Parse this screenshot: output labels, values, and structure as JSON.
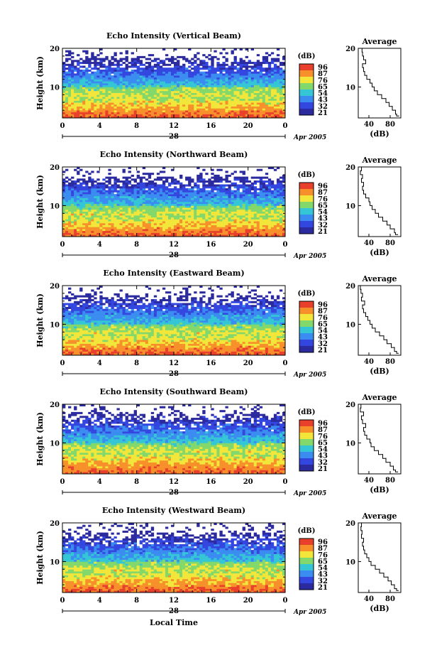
{
  "chart_data": {
    "type": "heatmap",
    "colorbar": {
      "unit_label": "(dB)",
      "ticks": [
        "96",
        "87",
        "76",
        "65",
        "54",
        "43",
        "32",
        "21"
      ],
      "colors": [
        "#e8402a",
        "#f7902a",
        "#f2e63a",
        "#82d86a",
        "#35c6d6",
        "#3a8cf0",
        "#3446e0",
        "#2b2a9e"
      ]
    },
    "x_ticks": [
      "0",
      "4",
      "8",
      "12",
      "16",
      "20",
      "0"
    ],
    "x_range_hours": [
      0,
      24
    ],
    "y_ticks": [
      "20",
      "10"
    ],
    "y_range_km": [
      2,
      20
    ],
    "ylabel": "Height (km)",
    "avg_title": "Average",
    "avg_xlabel": "(dB)",
    "avg_x_ticks": [
      "40",
      "80"
    ],
    "avg_xlim": [
      20,
      100
    ],
    "xlabel_bottom": "Local Time",
    "panels": [
      {
        "title": "Echo Intensity (Vertical Beam)",
        "day_label": "28",
        "date_label": "Apr 2005",
        "avg_profile": [
          {
            "h": 2.5,
            "db": 96
          },
          {
            "h": 3,
            "db": 92
          },
          {
            "h": 4,
            "db": 90
          },
          {
            "h": 5,
            "db": 84
          },
          {
            "h": 6,
            "db": 78
          },
          {
            "h": 7,
            "db": 72
          },
          {
            "h": 8,
            "db": 64
          },
          {
            "h": 9,
            "db": 56
          },
          {
            "h": 10,
            "db": 50
          },
          {
            "h": 11,
            "db": 46
          },
          {
            "h": 12,
            "db": 42
          },
          {
            "h": 13,
            "db": 36
          },
          {
            "h": 14,
            "db": 32
          },
          {
            "h": 15,
            "db": 30
          },
          {
            "h": 16,
            "db": 28
          },
          {
            "h": 17,
            "db": 34
          },
          {
            "h": 18,
            "db": 30
          },
          {
            "h": 19,
            "db": 28
          },
          {
            "h": 20,
            "db": 27
          }
        ]
      },
      {
        "title": "Echo Intensity (Northward Beam)",
        "day_label": "28",
        "date_label": "Apr 2005",
        "avg_profile": [
          {
            "h": 2.5,
            "db": 94
          },
          {
            "h": 3,
            "db": 90
          },
          {
            "h": 4,
            "db": 88
          },
          {
            "h": 5,
            "db": 80
          },
          {
            "h": 6,
            "db": 74
          },
          {
            "h": 7,
            "db": 66
          },
          {
            "h": 8,
            "db": 58
          },
          {
            "h": 9,
            "db": 52
          },
          {
            "h": 10,
            "db": 46
          },
          {
            "h": 11,
            "db": 42
          },
          {
            "h": 12,
            "db": 40
          },
          {
            "h": 13,
            "db": 34
          },
          {
            "h": 14,
            "db": 30
          },
          {
            "h": 15,
            "db": 28
          },
          {
            "h": 16,
            "db": 30
          },
          {
            "h": 17,
            "db": 26
          },
          {
            "h": 18,
            "db": 28
          },
          {
            "h": 19,
            "db": 24
          },
          {
            "h": 20,
            "db": 26
          }
        ]
      },
      {
        "title": "Echo Intensity (Eastward Beam)",
        "day_label": "28",
        "date_label": "Apr 2005",
        "avg_profile": [
          {
            "h": 2.5,
            "db": 95
          },
          {
            "h": 3,
            "db": 92
          },
          {
            "h": 4,
            "db": 88
          },
          {
            "h": 5,
            "db": 82
          },
          {
            "h": 6,
            "db": 74
          },
          {
            "h": 7,
            "db": 68
          },
          {
            "h": 8,
            "db": 60
          },
          {
            "h": 9,
            "db": 52
          },
          {
            "h": 10,
            "db": 46
          },
          {
            "h": 11,
            "db": 42
          },
          {
            "h": 12,
            "db": 38
          },
          {
            "h": 13,
            "db": 34
          },
          {
            "h": 14,
            "db": 30
          },
          {
            "h": 15,
            "db": 28
          },
          {
            "h": 16,
            "db": 32
          },
          {
            "h": 17,
            "db": 26
          },
          {
            "h": 18,
            "db": 28
          },
          {
            "h": 19,
            "db": 25
          },
          {
            "h": 20,
            "db": 24
          }
        ]
      },
      {
        "title": "Echo Intensity (Southward Beam)",
        "day_label": "28",
        "date_label": "Apr 2005",
        "avg_profile": [
          {
            "h": 2.5,
            "db": 94
          },
          {
            "h": 3,
            "db": 90
          },
          {
            "h": 4,
            "db": 86
          },
          {
            "h": 5,
            "db": 80
          },
          {
            "h": 6,
            "db": 72
          },
          {
            "h": 7,
            "db": 66
          },
          {
            "h": 8,
            "db": 58
          },
          {
            "h": 9,
            "db": 50
          },
          {
            "h": 10,
            "db": 44
          },
          {
            "h": 11,
            "db": 42
          },
          {
            "h": 12,
            "db": 36
          },
          {
            "h": 13,
            "db": 32
          },
          {
            "h": 14,
            "db": 30
          },
          {
            "h": 15,
            "db": 34
          },
          {
            "h": 16,
            "db": 28
          },
          {
            "h": 17,
            "db": 26
          },
          {
            "h": 18,
            "db": 30
          },
          {
            "h": 19,
            "db": 24
          },
          {
            "h": 20,
            "db": 25
          }
        ]
      },
      {
        "title": "Echo Intensity (Westward Beam)",
        "day_label": "28",
        "date_label": "Apr 2005",
        "avg_profile": [
          {
            "h": 2.5,
            "db": 95
          },
          {
            "h": 3,
            "db": 92
          },
          {
            "h": 4,
            "db": 88
          },
          {
            "h": 5,
            "db": 82
          },
          {
            "h": 6,
            "db": 76
          },
          {
            "h": 7,
            "db": 68
          },
          {
            "h": 8,
            "db": 60
          },
          {
            "h": 9,
            "db": 52
          },
          {
            "h": 10,
            "db": 44
          },
          {
            "h": 11,
            "db": 40
          },
          {
            "h": 12,
            "db": 36
          },
          {
            "h": 13,
            "db": 32
          },
          {
            "h": 14,
            "db": 30
          },
          {
            "h": 15,
            "db": 28
          },
          {
            "h": 16,
            "db": 30
          },
          {
            "h": 17,
            "db": 26
          },
          {
            "h": 18,
            "db": 27
          },
          {
            "h": 19,
            "db": 25
          },
          {
            "h": 20,
            "db": 26
          }
        ]
      }
    ]
  }
}
